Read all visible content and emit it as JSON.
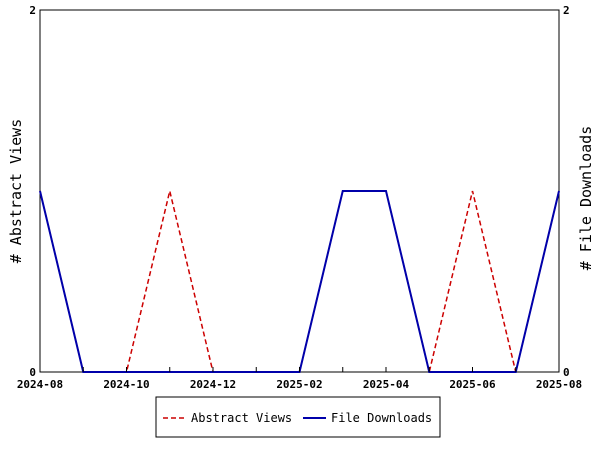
{
  "chart_data": {
    "type": "line",
    "title": "",
    "x_tick_labels": [
      "2024-08",
      "2024-10",
      "2024-12",
      "2025-02",
      "2025-04",
      "2025-06",
      "2025-08"
    ],
    "x_months": [
      "2024-08",
      "2024-09",
      "2024-10",
      "2024-11",
      "2024-12",
      "2025-01",
      "2025-02",
      "2025-03",
      "2025-04",
      "2025-05",
      "2025-06",
      "2025-07",
      "2025-08"
    ],
    "ylabel_left": "# Abstract Views",
    "ylabel_right": "# File Downloads",
    "ylim": [
      0,
      2
    ],
    "y_tick_labels": [
      "0",
      "2"
    ],
    "grid": false,
    "legend_position": "bottom",
    "series": [
      {
        "name": "Abstract Views",
        "axis": "left",
        "color": "#cc0000",
        "style": "dashed",
        "values": [
          1,
          0,
          0,
          1,
          0,
          0,
          0,
          1,
          1,
          0,
          1,
          0,
          1
        ]
      },
      {
        "name": "File Downloads",
        "axis": "right",
        "color": "#0000aa",
        "style": "solid",
        "values": [
          1,
          0,
          0,
          0,
          0,
          0,
          0,
          1,
          1,
          0,
          0,
          0,
          1
        ]
      }
    ]
  }
}
